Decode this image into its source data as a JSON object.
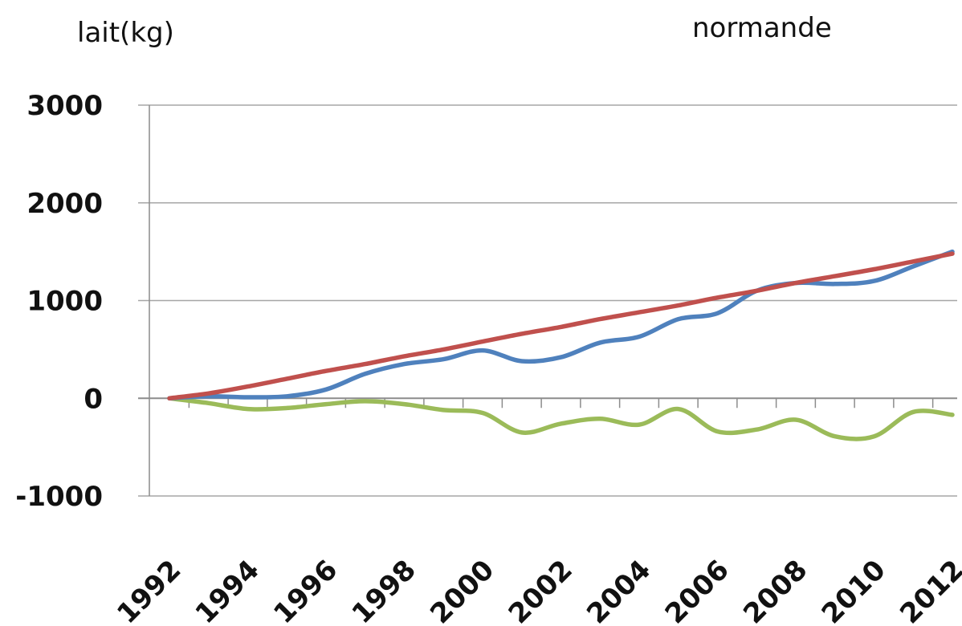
{
  "chart_data": {
    "type": "line",
    "title": "normande",
    "ylabel": "lait(kg)",
    "xlabel": "",
    "x": [
      1992,
      1993,
      1994,
      1995,
      1996,
      1997,
      1998,
      1999,
      2000,
      2001,
      2002,
      2003,
      2004,
      2005,
      2006,
      2007,
      2008,
      2009,
      2010,
      2011,
      2012
    ],
    "x_tick_labels": [
      "1992",
      "1994",
      "1996",
      "1998",
      "2000",
      "2002",
      "2004",
      "2006",
      "2008",
      "2010",
      "2012"
    ],
    "y_tick_labels": [
      "3000",
      "2000",
      "1000",
      "0",
      "-1000"
    ],
    "ylim": [
      -1000,
      3000
    ],
    "grid": "horizontal",
    "legend": "none",
    "series": [
      {
        "color": "#4f81bd",
        "values": [
          0,
          20,
          10,
          20,
          90,
          250,
          350,
          400,
          490,
          380,
          420,
          570,
          630,
          810,
          870,
          1100,
          1180,
          1170,
          1200,
          1350,
          1500
        ]
      },
      {
        "color": "#c0504d",
        "values": [
          0,
          50,
          120,
          200,
          280,
          350,
          430,
          500,
          580,
          660,
          730,
          810,
          880,
          950,
          1030,
          1100,
          1180,
          1250,
          1320,
          1400,
          1480
        ]
      },
      {
        "color": "#9bbb59",
        "values": [
          0,
          -50,
          -110,
          -100,
          -60,
          -30,
          -60,
          -120,
          -150,
          -350,
          -260,
          -210,
          -270,
          -110,
          -340,
          -320,
          -220,
          -390,
          -390,
          -140,
          -170
        ]
      }
    ]
  }
}
